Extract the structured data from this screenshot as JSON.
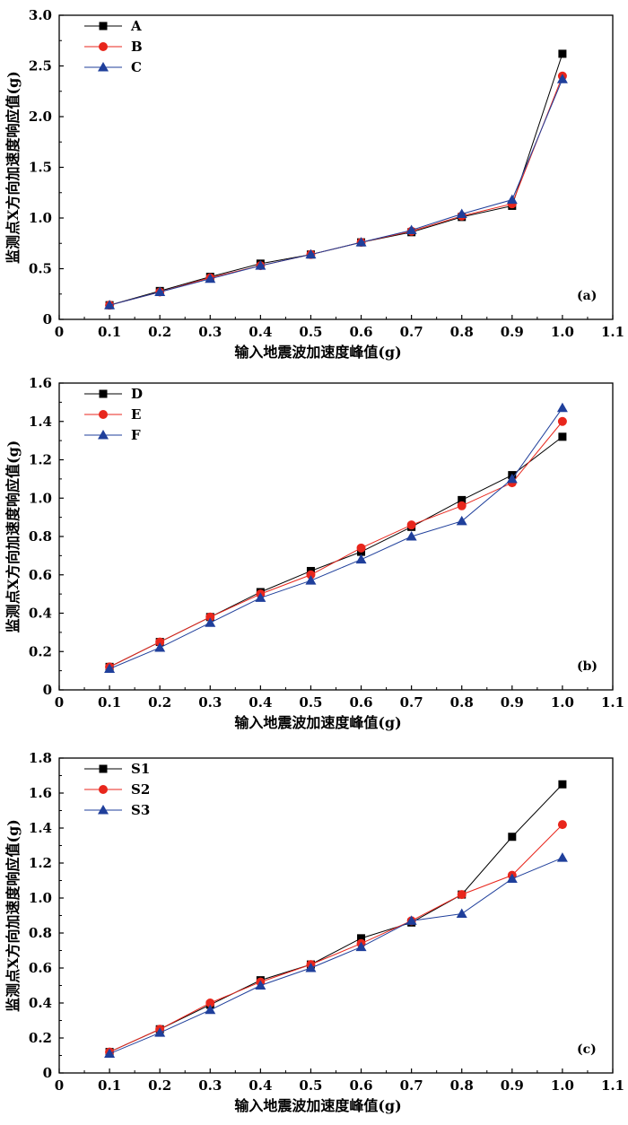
{
  "chart_data": [
    {
      "type": "line",
      "panel_label": "(a)",
      "xlabel": "输入地震波加速度峰值(g)",
      "ylabel": "监测点X方向加速度响应值(g)",
      "xlim": [
        0,
        1.1
      ],
      "ylim": [
        0,
        3.0
      ],
      "xticks": [
        "0",
        "0.1",
        "0.2",
        "0.3",
        "0.4",
        "0.5",
        "0.6",
        "0.7",
        "0.8",
        "0.9",
        "1.0",
        "1.1"
      ],
      "yticks": [
        "0",
        "0.5",
        "1.0",
        "1.5",
        "2.0",
        "2.5",
        "3.0"
      ],
      "x": [
        0.1,
        0.2,
        0.3,
        0.4,
        0.5,
        0.6,
        0.7,
        0.8,
        0.9,
        1.0
      ],
      "legend_position": "top-left",
      "series": [
        {
          "name": "A",
          "marker": "square",
          "color": "#000000",
          "values": [
            0.14,
            0.28,
            0.42,
            0.55,
            0.64,
            0.76,
            0.86,
            1.01,
            1.12,
            2.62
          ]
        },
        {
          "name": "B",
          "marker": "circle",
          "color": "#e8261c",
          "values": [
            0.14,
            0.27,
            0.41,
            0.53,
            0.64,
            0.76,
            0.87,
            1.02,
            1.14,
            2.4
          ]
        },
        {
          "name": "C",
          "marker": "triangle",
          "color": "#1f3f9b",
          "values": [
            0.14,
            0.27,
            0.4,
            0.53,
            0.64,
            0.76,
            0.88,
            1.04,
            1.18,
            2.37
          ]
        }
      ]
    },
    {
      "type": "line",
      "panel_label": "(b)",
      "xlabel": "输入地震波加速度峰值(g)",
      "ylabel": "监测点X方向加速度响应值(g)",
      "xlim": [
        0,
        1.1
      ],
      "ylim": [
        0,
        1.6
      ],
      "xticks": [
        "0",
        "0.1",
        "0.2",
        "0.3",
        "0.4",
        "0.5",
        "0.6",
        "0.7",
        "0.8",
        "0.9",
        "1.0",
        "1.1"
      ],
      "yticks": [
        "0",
        "0.2",
        "0.4",
        "0.6",
        "0.8",
        "1.0",
        "1.2",
        "1.4",
        "1.6"
      ],
      "x": [
        0.1,
        0.2,
        0.3,
        0.4,
        0.5,
        0.6,
        0.7,
        0.8,
        0.9,
        1.0
      ],
      "legend_position": "top-left",
      "series": [
        {
          "name": "D",
          "marker": "square",
          "color": "#000000",
          "values": [
            0.12,
            0.25,
            0.38,
            0.51,
            0.62,
            0.72,
            0.85,
            0.99,
            1.12,
            1.32
          ]
        },
        {
          "name": "E",
          "marker": "circle",
          "color": "#e8261c",
          "values": [
            0.12,
            0.25,
            0.38,
            0.5,
            0.6,
            0.74,
            0.86,
            0.96,
            1.08,
            1.4
          ]
        },
        {
          "name": "F",
          "marker": "triangle",
          "color": "#1f3f9b",
          "values": [
            0.11,
            0.22,
            0.35,
            0.48,
            0.57,
            0.68,
            0.8,
            0.88,
            1.1,
            1.47
          ]
        }
      ]
    },
    {
      "type": "line",
      "panel_label": "(c)",
      "xlabel": "输入地震波加速度峰值(g)",
      "ylabel": "监测点X方向加速度响应值(g)",
      "xlim": [
        0,
        1.1
      ],
      "ylim": [
        0,
        1.8
      ],
      "xticks": [
        "0",
        "0.1",
        "0.2",
        "0.3",
        "0.4",
        "0.5",
        "0.6",
        "0.7",
        "0.8",
        "0.9",
        "1.0",
        "1.1"
      ],
      "yticks": [
        "0",
        "0.2",
        "0.4",
        "0.6",
        "0.8",
        "1.0",
        "1.2",
        "1.4",
        "1.6",
        "1.8"
      ],
      "x": [
        0.1,
        0.2,
        0.3,
        0.4,
        0.5,
        0.6,
        0.7,
        0.8,
        0.9,
        1.0
      ],
      "legend_position": "top-left",
      "series": [
        {
          "name": "S1",
          "marker": "square",
          "color": "#000000",
          "values": [
            0.12,
            0.25,
            0.39,
            0.53,
            0.62,
            0.77,
            0.86,
            1.02,
            1.35,
            1.65
          ]
        },
        {
          "name": "S2",
          "marker": "circle",
          "color": "#e8261c",
          "values": [
            0.12,
            0.25,
            0.4,
            0.52,
            0.62,
            0.74,
            0.87,
            1.02,
            1.13,
            1.42
          ]
        },
        {
          "name": "S3",
          "marker": "triangle",
          "color": "#1f3f9b",
          "values": [
            0.11,
            0.23,
            0.36,
            0.5,
            0.6,
            0.72,
            0.87,
            0.91,
            1.11,
            1.23
          ]
        }
      ]
    }
  ]
}
